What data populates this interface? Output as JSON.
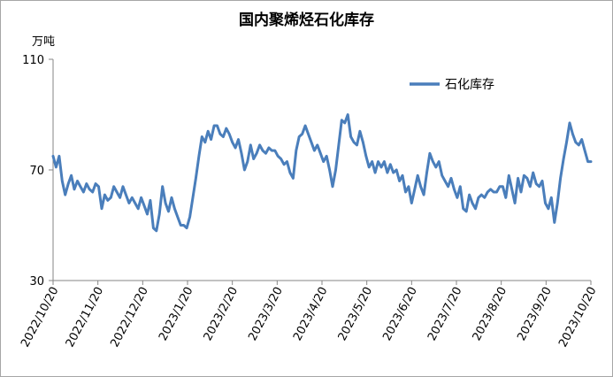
{
  "chart_data": {
    "type": "line",
    "title": "国内聚烯烃石化库存",
    "ylabel": "万吨",
    "ylim": [
      30,
      110
    ],
    "yticks": [
      30,
      70,
      110
    ],
    "xticks": [
      "2022/10/20",
      "2022/11/20",
      "2022/12/20",
      "2023/1/20",
      "2023/2/20",
      "2023/3/20",
      "2023/4/20",
      "2023/5/20",
      "2023/6/20",
      "2023/7/20",
      "2023/8/20",
      "2023/9/20",
      "2023/10/20"
    ],
    "legend": "top-right",
    "grid": false,
    "colors": {
      "series": "#4a7ebb",
      "axis": "#868686"
    },
    "series": [
      {
        "name": "石化库存",
        "x_start": "2022/10/20",
        "x_end": "2023/10/20",
        "values": [
          75,
          71,
          75,
          66,
          61,
          65,
          68,
          63,
          66,
          64,
          62,
          65,
          63,
          62,
          65,
          64,
          56,
          61,
          59,
          60,
          64,
          62,
          60,
          64,
          61,
          58,
          60,
          58,
          56,
          60,
          57,
          54,
          59,
          49,
          48,
          54,
          64,
          58,
          55,
          60,
          56,
          53,
          50,
          50,
          49,
          53,
          60,
          67,
          75,
          82,
          80,
          84,
          81,
          86,
          86,
          83,
          82,
          85,
          83,
          80,
          78,
          81,
          76,
          70,
          73,
          79,
          74,
          76,
          79,
          77,
          76,
          78,
          77,
          77,
          75,
          74,
          72,
          73,
          69,
          67,
          77,
          82,
          83,
          86,
          83,
          80,
          77,
          79,
          76,
          73,
          75,
          70,
          64,
          70,
          79,
          88,
          87,
          90,
          82,
          80,
          79,
          84,
          80,
          75,
          71,
          73,
          69,
          73,
          71,
          73,
          69,
          72,
          69,
          70,
          66,
          68,
          62,
          64,
          58,
          63,
          68,
          64,
          61,
          69,
          76,
          73,
          71,
          73,
          68,
          66,
          64,
          67,
          63,
          60,
          64,
          56,
          55,
          61,
          58,
          56,
          60,
          61,
          60,
          62,
          63,
          62,
          62,
          64,
          64,
          60,
          68,
          63,
          58,
          67,
          62,
          68,
          67,
          64,
          69,
          65,
          64,
          66,
          58,
          56,
          60,
          51,
          58,
          67,
          74,
          80,
          87,
          83,
          80,
          79,
          81,
          77,
          73,
          73
        ]
      }
    ]
  }
}
